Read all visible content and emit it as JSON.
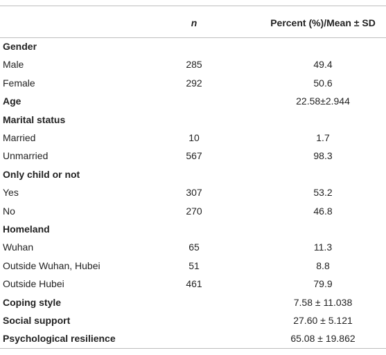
{
  "table": {
    "header": [
      "n",
      "Percent (%)/Mean ± SD"
    ],
    "groups": [
      {
        "heading": "Gender",
        "rows": [
          {
            "label": "Male",
            "n": 285,
            "value": 49.4
          },
          {
            "label": "Female",
            "n": 292,
            "value": 50.6
          }
        ]
      },
      {
        "heading": "Age",
        "value": "22.58±2.944"
      },
      {
        "heading": "Marital status",
        "rows": [
          {
            "label": "Married",
            "n": 10,
            "value": 1.7
          },
          {
            "label": "Unmarried",
            "n": 567,
            "value": 98.3
          }
        ]
      },
      {
        "heading": "Only child or not",
        "rows": [
          {
            "label": "Yes",
            "n": 307,
            "value": 53.2
          },
          {
            "label": "No",
            "n": 270,
            "value": 46.8
          }
        ]
      },
      {
        "heading": "Homeland",
        "rows": [
          {
            "label": "Wuhan",
            "n": 65,
            "value": 11.3
          },
          {
            "label": "Outside Wuhan, Hubei",
            "n": 51,
            "value": 8.8
          },
          {
            "label": "Outside Hubei",
            "n": 461,
            "value": 79.9
          }
        ]
      },
      {
        "heading": "Coping style",
        "value": "7.58 ± 11.038"
      },
      {
        "heading": "Social support",
        "value": "27.60 ± 5.121"
      },
      {
        "heading": "Psychological resilience",
        "value": "65.08 ± 19.862"
      }
    ]
  }
}
